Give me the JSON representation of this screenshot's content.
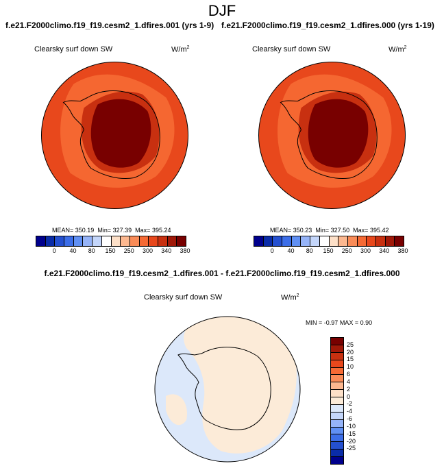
{
  "title": "DJF",
  "panels": [
    {
      "case": "f.e21.F2000climo.f19_f19.cesm2_1.dfires.001 (yrs 1-9)",
      "variable": "Clearsky surf down SW",
      "units": "W/m",
      "units_exp": "2",
      "mean_label": "MEAN=",
      "mean": "350.19",
      "min_label": "Min=",
      "min": "327.39",
      "max_label": "Max=",
      "max": "395.24"
    },
    {
      "case": "f.e21.F2000climo.f19_f19.cesm2_1.dfires.000 (yrs 1-19)",
      "variable": "Clearsky surf down SW",
      "units": "W/m",
      "units_exp": "2",
      "mean_label": "MEAN=",
      "mean": "350.23",
      "min_label": "Min=",
      "min": "327.50",
      "max_label": "Max=",
      "max": "395.42"
    }
  ],
  "difference": {
    "title": "f.e21.F2000climo.f19_f19.cesm2_1.dfires.001 - f.e21.F2000climo.f19_f19.cesm2_1.dfires.000",
    "variable": "Clearsky surf down SW",
    "units": "W/m",
    "units_exp": "2",
    "min_label": "MIN =",
    "min": "-0.97",
    "max_label": "MAX =",
    "max": "0.90"
  },
  "colorbar_abs": {
    "colors": [
      "#00008c",
      "#0a2ca8",
      "#2450d0",
      "#3c6ee8",
      "#6090f4",
      "#96b4f8",
      "#c4d6fa",
      "#ffffff",
      "#fde0c8",
      "#fcb890",
      "#fa8c58",
      "#f66a34",
      "#e8481c",
      "#c83010",
      "#a01808",
      "#780000"
    ],
    "labels": [
      "0",
      "40",
      "80",
      "150",
      "250",
      "300",
      "340",
      "380"
    ]
  },
  "colorbar_diff": {
    "colors": [
      "#780000",
      "#a01808",
      "#c83010",
      "#e8481c",
      "#f66a34",
      "#fa8c58",
      "#fcb890",
      "#fde0c8",
      "#fcebd8",
      "#dce8fa",
      "#c4d6fa",
      "#96b4f8",
      "#6090f4",
      "#3c6ee8",
      "#2450d0",
      "#0a2ca8",
      "#00008c"
    ],
    "labels": [
      "25",
      "20",
      "15",
      "10",
      "6",
      "4",
      "2",
      "0",
      "-2",
      "-4",
      "-6",
      "-10",
      "-15",
      "-20",
      "-25"
    ]
  },
  "map_colors": {
    "ocean_abs": "#e8481c",
    "band1_abs": "#f66a34",
    "band2_abs": "#c83010",
    "ice_abs": "#a01808",
    "plateau_abs": "#780000",
    "diff_neutral_blue": "#dce8fa",
    "diff_warm": "#fcebd8"
  }
}
